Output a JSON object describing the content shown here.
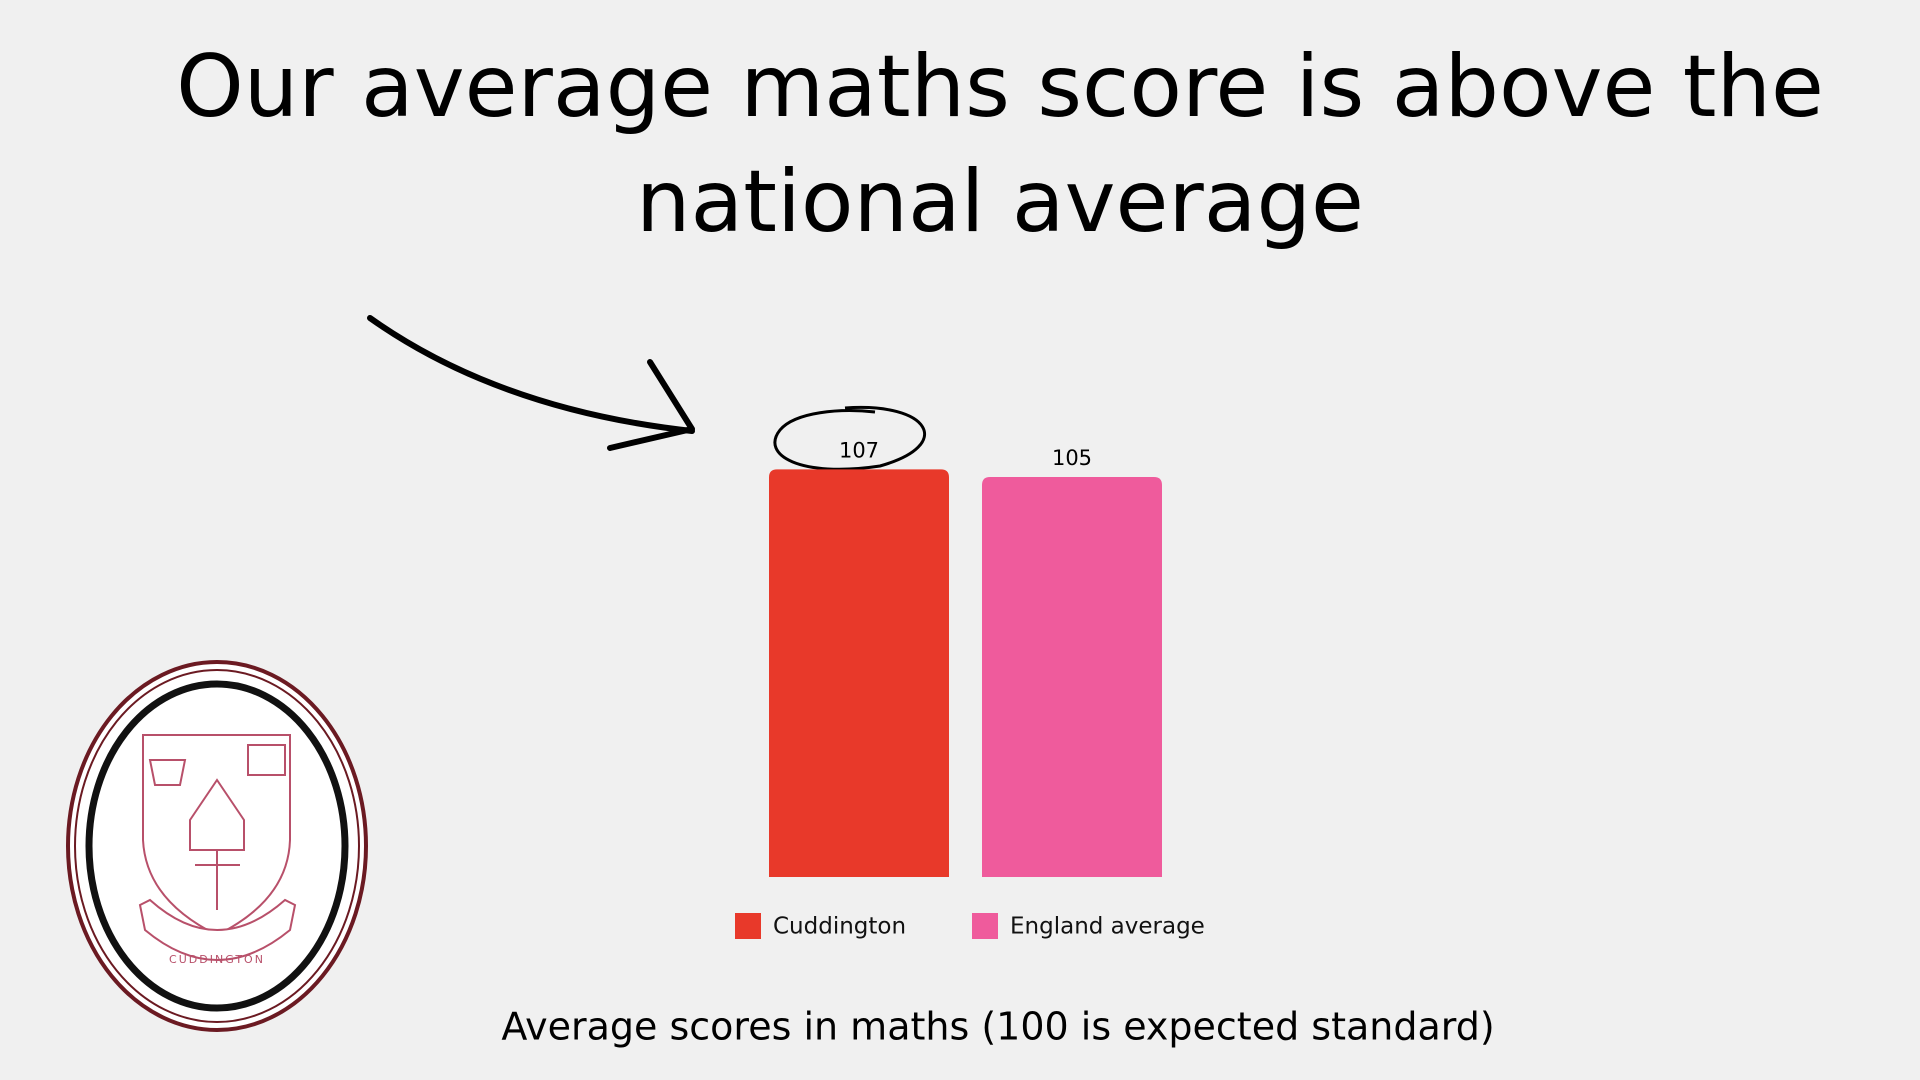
{
  "chart_data": {
    "type": "bar",
    "title": "Our average maths score is above the national average",
    "xlabel": "Average scores in maths (100 is expected standard)",
    "categories": [
      null
    ],
    "series": [
      {
        "name": "Cuddington",
        "color": "#e8392a",
        "values": [
          107
        ]
      },
      {
        "name": "England average",
        "color": "#ef5b9c",
        "values": [
          105
        ]
      }
    ],
    "ylim": [
      0,
      110
    ]
  },
  "logo": {
    "text": "CUDDINGTON"
  }
}
